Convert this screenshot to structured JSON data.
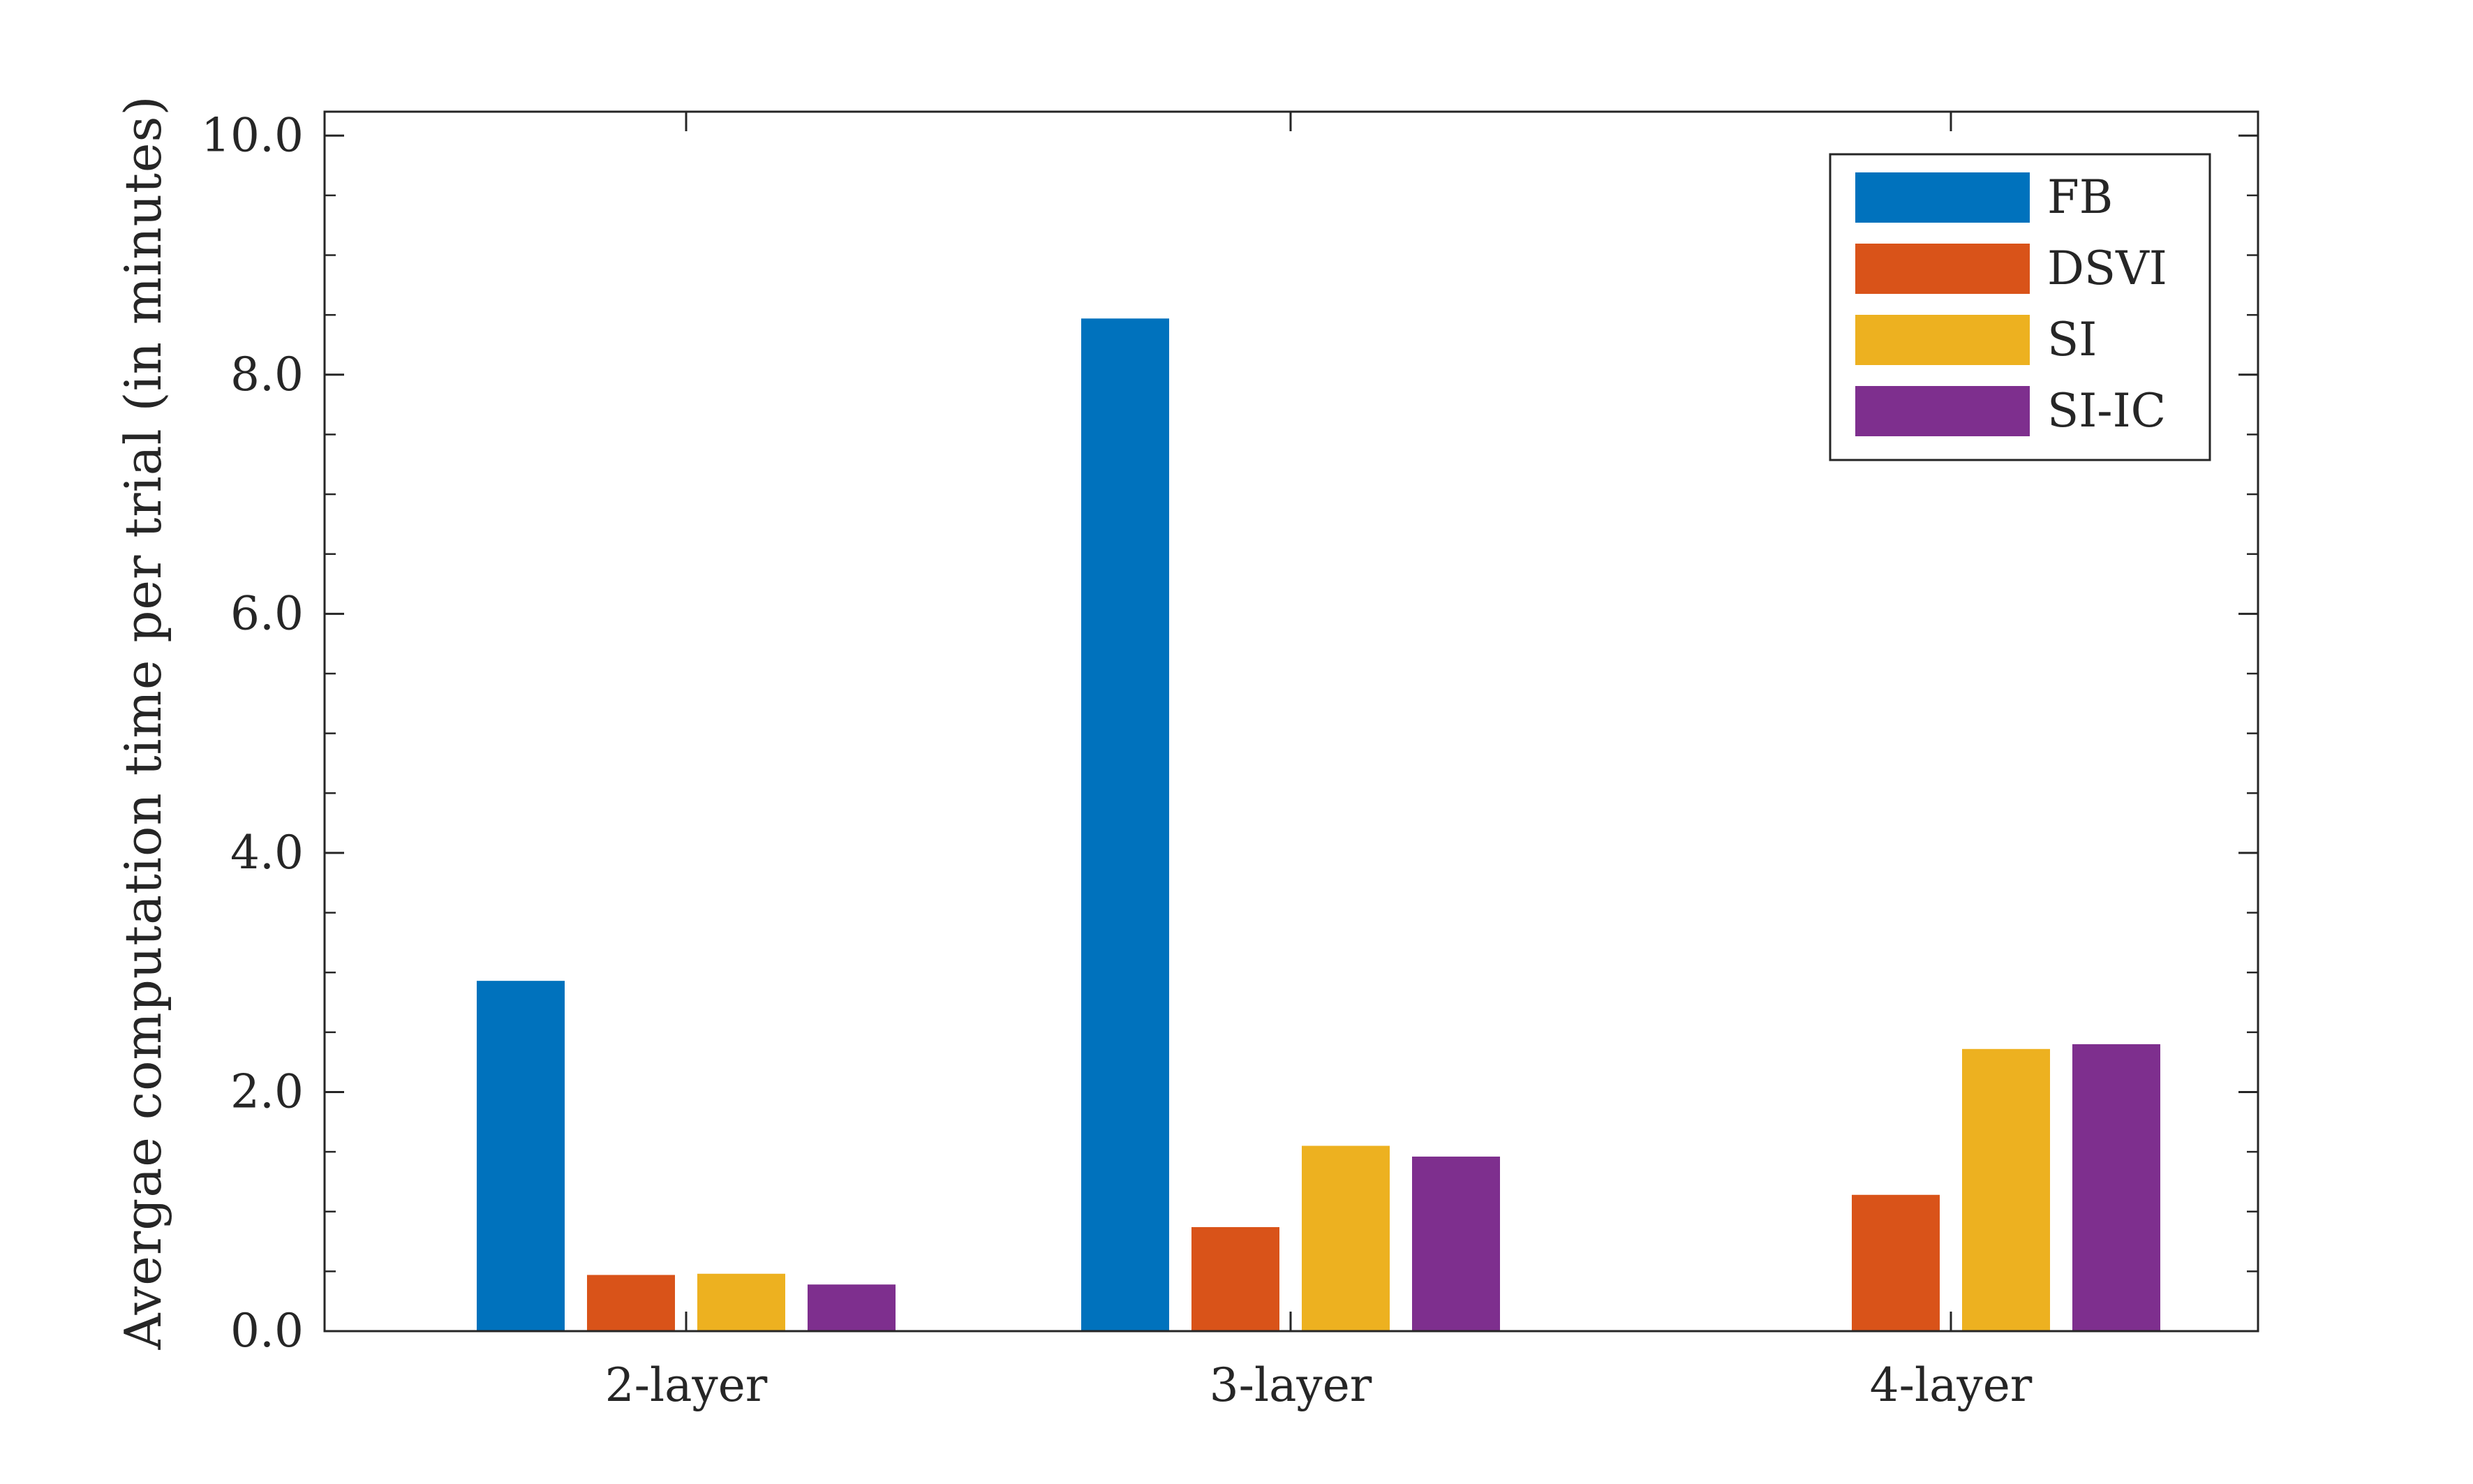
{
  "chart_data": {
    "type": "bar",
    "title": "",
    "xlabel": "",
    "ylabel": "Avergae computation time per trial (in minutes)",
    "categories": [
      "2-layer",
      "3-layer",
      "4-layer"
    ],
    "series": [
      {
        "name": "FB",
        "color": "#0072BD",
        "values": [
          2.93,
          8.47,
          null
        ]
      },
      {
        "name": "DSVI",
        "color": "#D95319",
        "values": [
          0.47,
          0.87,
          1.14
        ]
      },
      {
        "name": "SI",
        "color": "#EDB120",
        "values": [
          0.48,
          1.55,
          2.36
        ]
      },
      {
        "name": "SI-IC",
        "color": "#7E2F8E",
        "values": [
          0.39,
          1.46,
          2.4
        ]
      }
    ],
    "ylim": [
      0,
      10.2
    ],
    "yticks": [
      0,
      2,
      4,
      6,
      8,
      10
    ],
    "ytick_labels": [
      "0.0",
      "2.0",
      "4.0",
      "6.0",
      "8.0",
      "10.0"
    ],
    "grid": false,
    "legend": {
      "position": "top-right"
    }
  }
}
